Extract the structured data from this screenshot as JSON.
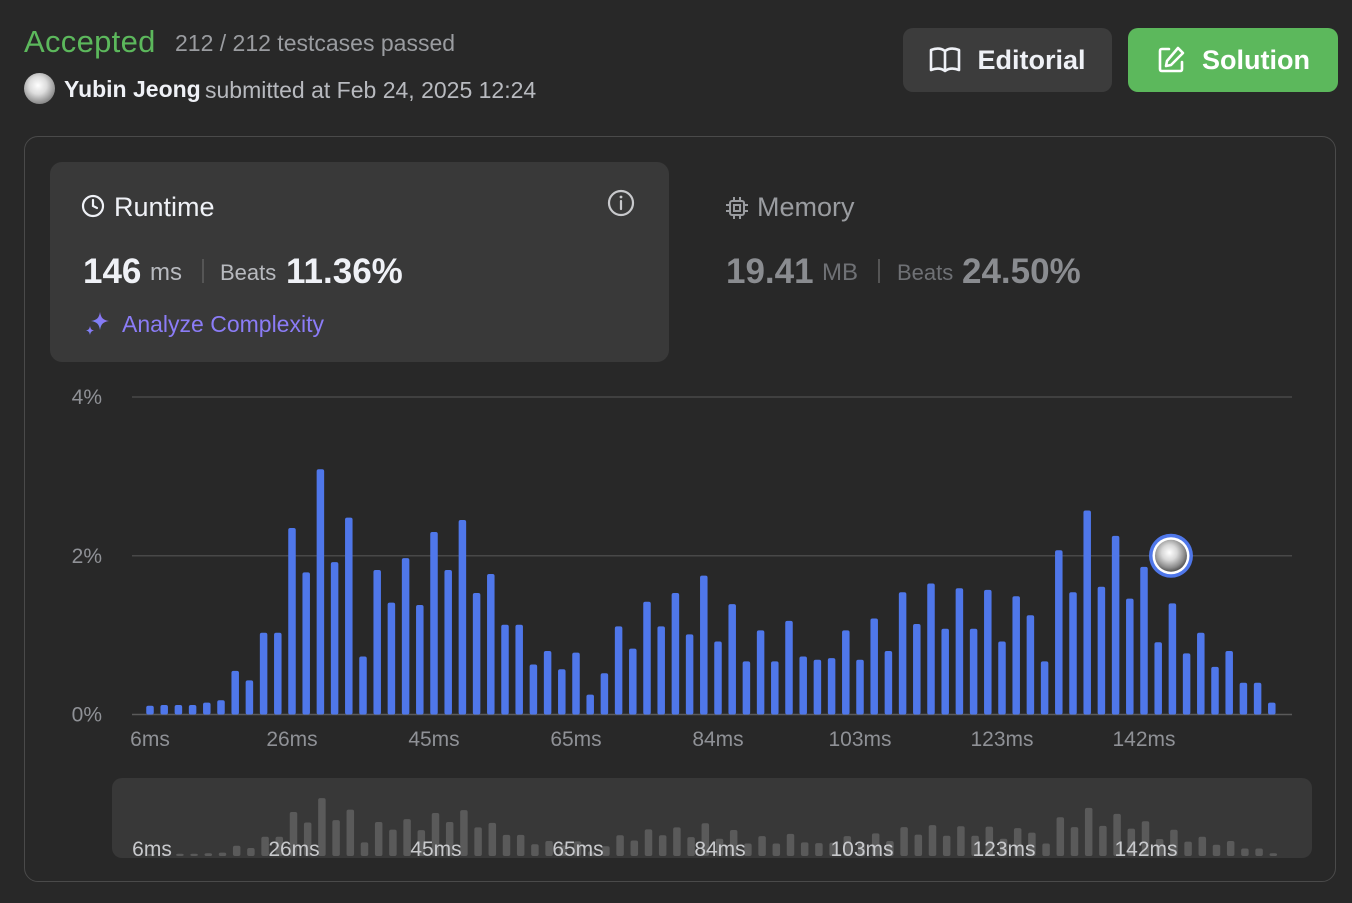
{
  "header": {
    "status": "Accepted",
    "testcases": "212 / 212 testcases passed",
    "username": "Yubin Jeong",
    "submitted": "submitted at Feb 24, 2025 12:24",
    "editorial_label": "Editorial",
    "solution_label": "Solution"
  },
  "runtime": {
    "label": "Runtime",
    "value": "146",
    "unit": "ms",
    "beats_label": "Beats",
    "beats_value": "11.36%",
    "analyze_label": "Analyze Complexity"
  },
  "memory": {
    "label": "Memory",
    "value": "19.41",
    "unit": "MB",
    "beats_label": "Beats",
    "beats_value": "24.50%"
  },
  "colors": {
    "accepted": "#5cb85c",
    "bar": "#4f77ea",
    "analyze": "#8b7cf6"
  },
  "icons": [
    "book-icon",
    "edit-icon",
    "clock-icon",
    "info-icon",
    "sparkle-icon",
    "cpu-icon",
    "avatar"
  ],
  "chart_data": {
    "type": "bar",
    "ylim": [
      0,
      4
    ],
    "y_ticks": [
      "0%",
      "2%",
      "4%"
    ],
    "x_tick_labels": [
      "6ms",
      "26ms",
      "45ms",
      "65ms",
      "84ms",
      "103ms",
      "123ms",
      "142ms"
    ],
    "grid": true,
    "highlight_tick": "142ms",
    "series": [
      {
        "values": [
          0.11,
          0.12,
          0.12,
          0.12,
          0.15,
          0.18,
          0.55,
          0.43,
          1.03,
          1.03,
          2.35,
          1.79,
          3.09,
          1.92,
          2.48,
          0.73,
          1.82,
          1.41,
          1.97,
          1.38,
          2.3,
          1.82,
          2.45,
          1.53,
          1.77,
          1.13,
          1.13,
          0.63,
          0.8,
          0.57,
          0.78,
          0.25,
          0.52,
          1.11,
          0.83,
          1.42,
          1.11,
          1.53,
          1.01,
          1.75,
          0.92,
          1.39,
          0.67,
          1.06,
          0.67,
          1.18,
          0.73,
          0.69,
          0.71,
          1.06,
          0.69,
          1.21,
          0.8,
          1.54,
          1.14,
          1.65,
          1.08,
          1.59,
          1.08,
          1.57,
          0.92,
          1.49,
          1.25,
          0.67,
          2.07,
          1.54,
          2.57,
          1.61,
          2.25,
          1.46,
          1.86,
          0.91,
          1.4,
          0.77,
          1.03,
          0.6,
          0.8,
          0.4,
          0.4,
          0.15
        ]
      }
    ]
  }
}
